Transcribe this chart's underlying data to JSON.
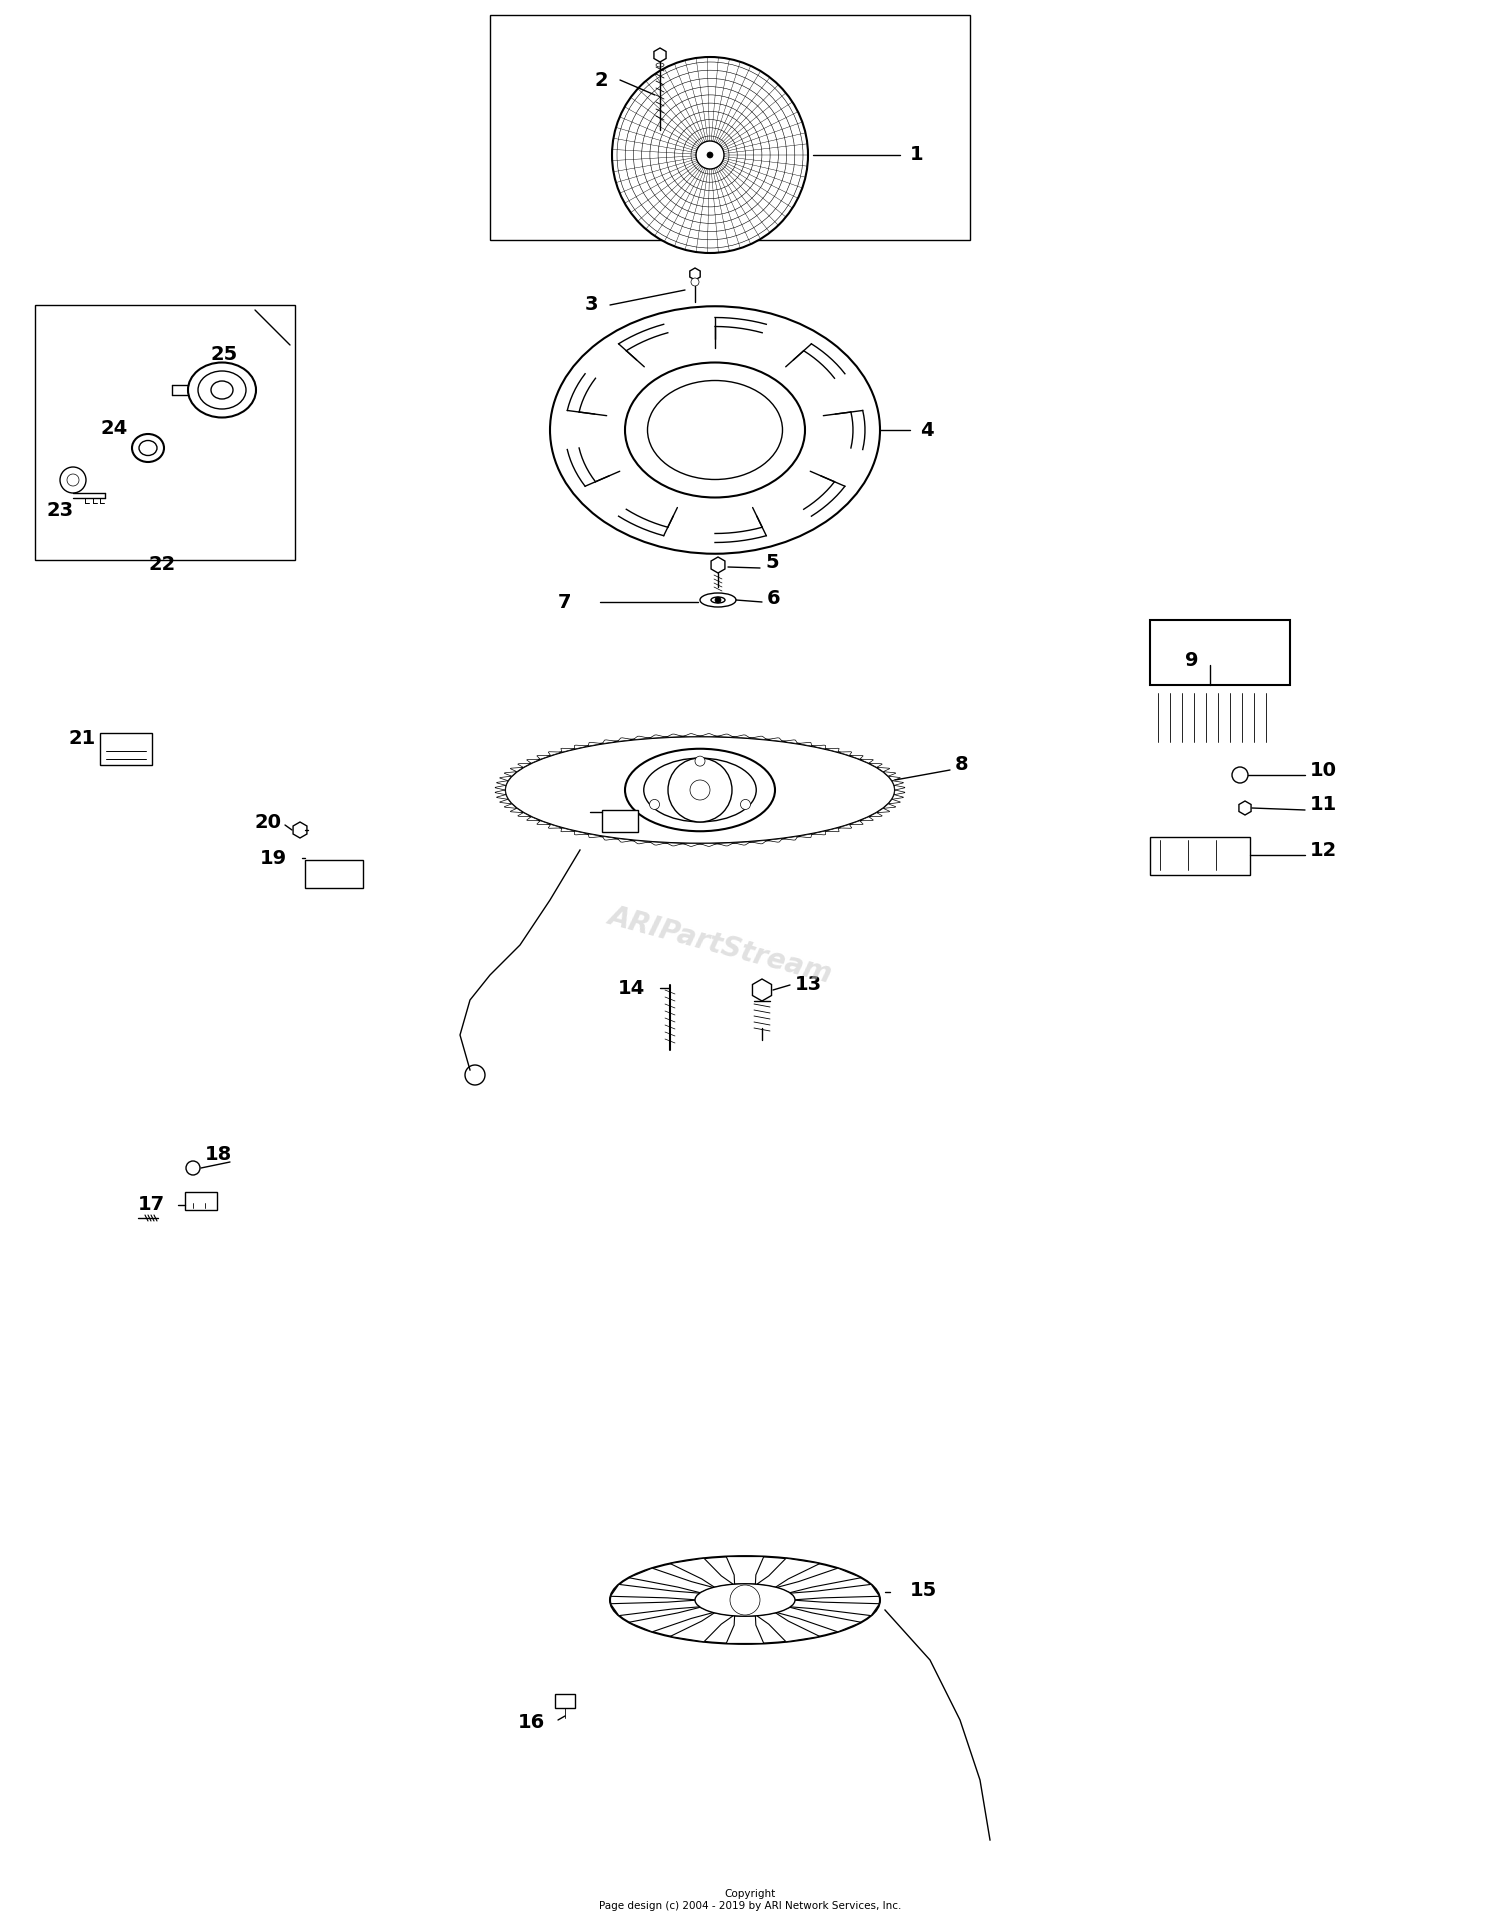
{
  "bg_color": "#ffffff",
  "copyright": "Copyright\nPage design (c) 2004 - 2019 by ARI Network Services, Inc.",
  "watermark": "ARIPartStream",
  "fig_width": 15.0,
  "fig_height": 19.27,
  "dpi": 100,
  "lw_thin": 1.0,
  "lw_med": 1.5,
  "lw_thick": 2.0,
  "label_fontsize": 14,
  "edge_color": "black",
  "face_color": "white"
}
